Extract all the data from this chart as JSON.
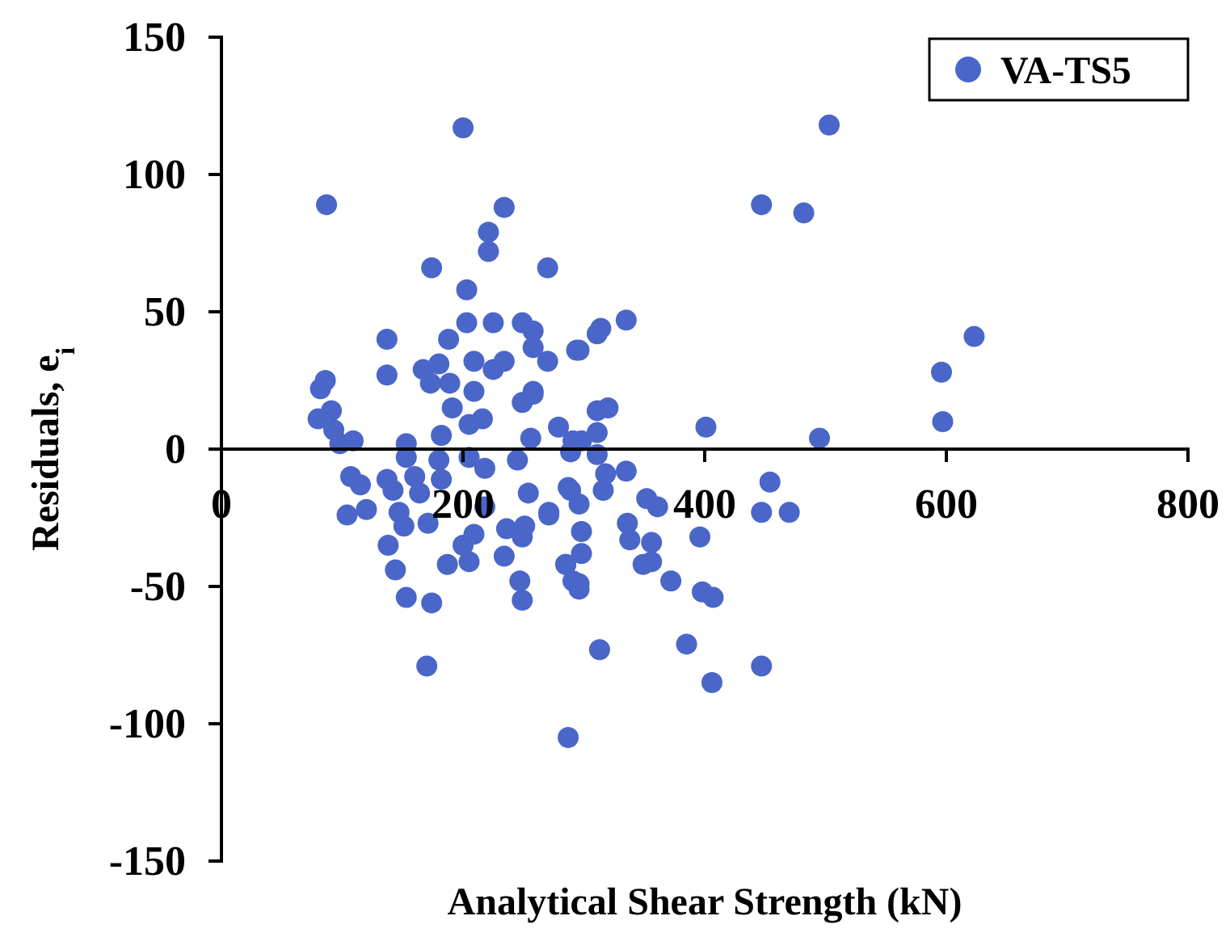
{
  "chart_data": {
    "type": "scatter",
    "xlabel": "Analytical Shear Strength (kN)",
    "ylabel": "Residuals, e$_{i}$",
    "xlim": [
      0,
      800
    ],
    "ylim": [
      -150,
      150
    ],
    "xticks": [
      0,
      200,
      400,
      600,
      800
    ],
    "yticks": [
      -150,
      -100,
      -50,
      0,
      50,
      100,
      150
    ],
    "grid": false,
    "legend": "top right",
    "marker": "circle",
    "series": [
      {
        "name": "VA-TS5",
        "color": "#4a66c8",
        "x": [
          87,
          200,
          234,
          221,
          221,
          174,
          270,
          203,
          137,
          188,
          203,
          225,
          249,
          258,
          258,
          270,
          294,
          137,
          167,
          180,
          173,
          189,
          209,
          209,
          225,
          234,
          82,
          86,
          80,
          91,
          93,
          98,
          109,
          153,
          182,
          191,
          205,
          216,
          249,
          258,
          256,
          279,
          291,
          107,
          115,
          137,
          153,
          160,
          180,
          182,
          205,
          218,
          245,
          254,
          289,
          104,
          120,
          142,
          147,
          151,
          164,
          171,
          138,
          144,
          153,
          174,
          170,
          187,
          205,
          200,
          209,
          218,
          234,
          236,
          249,
          251,
          247,
          249,
          271,
          285,
          291,
          287,
          289,
          503,
          447,
          482,
          335,
          311,
          314,
          296,
          623,
          596,
          597,
          401,
          495,
          258,
          320,
          311,
          298,
          311,
          311,
          318,
          335,
          316,
          287,
          454,
          447,
          470,
          352,
          361,
          271,
          296,
          396,
          336,
          338,
          356,
          298,
          298,
          285,
          349,
          356,
          372,
          398,
          407,
          296,
          296,
          313,
          385,
          447,
          406
        ],
        "values": [
          89,
          117,
          88,
          79,
          72,
          66,
          66,
          58,
          40,
          40,
          46,
          46,
          46,
          43,
          37,
          32,
          36,
          27,
          29,
          31,
          24,
          24,
          32,
          21,
          29,
          32,
          22,
          25,
          11,
          14,
          7,
          2,
          3,
          2,
          5,
          15,
          9,
          11,
          17,
          21,
          4,
          8,
          3,
          -10,
          -13,
          -11,
          -3,
          -10,
          -4,
          -11,
          -3,
          -7,
          -4,
          -16,
          -1,
          -24,
          -22,
          -15,
          -23,
          -28,
          -16,
          -27,
          -35,
          -44,
          -54,
          -56,
          -79,
          -42,
          -41,
          -35,
          -31,
          -21,
          -39,
          -29,
          -32,
          -28,
          -48,
          -55,
          -24,
          -42,
          -48,
          -105,
          -15,
          118,
          89,
          86,
          47,
          42,
          44,
          36,
          41,
          28,
          10,
          8,
          4,
          20,
          15,
          14,
          3,
          6,
          -2,
          -9,
          -8,
          -15,
          -14,
          -12,
          -23,
          -23,
          -18,
          -21,
          -23,
          -20,
          -32,
          -27,
          -33,
          -34,
          -30,
          -38,
          -42,
          -42,
          -41,
          -48,
          -52,
          -54,
          -49,
          -51,
          -73,
          -71,
          -79,
          -85
        ]
      }
    ]
  }
}
